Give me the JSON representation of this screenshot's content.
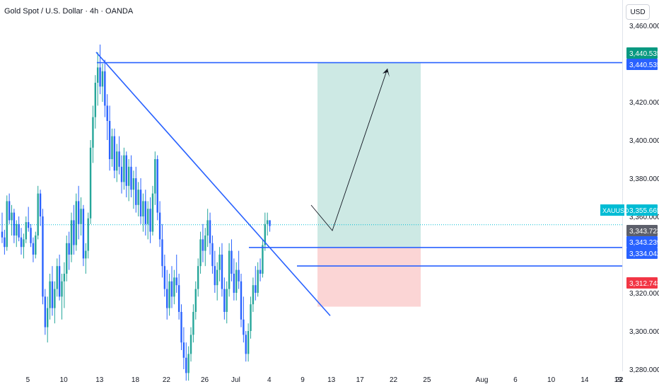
{
  "header": {
    "title": "Gold Spot / U.S. Dollar · 4h · OANDA",
    "currency_label": "USD"
  },
  "colors": {
    "up": "#26a69a",
    "down": "#2962ff",
    "line": "#2962ff",
    "profit_zone": "#cde9e4",
    "loss_zone": "#fbd5d5",
    "tp_tag": "#089981",
    "sl_tag": "#f23645",
    "price_tag": "#00bcd4",
    "blue_tag": "#2962ff",
    "gray_tag": "#5d606b"
  },
  "chart_data": {
    "type": "candlestick",
    "symbol": "XAUUSD",
    "timeframe": "4h",
    "ylim": [
      3270,
      3470
    ],
    "y_ticks": [
      "3,460.000",
      "3,440.535",
      "3,420.000",
      "3,400.000",
      "3,380.000",
      "3,360.000",
      "3,355.665",
      "3,343.723",
      "3,343.239",
      "3,334.042",
      "3,320.000",
      "3,312.743",
      "3,300.000",
      "3,280.000"
    ],
    "y_tick_values": [
      3460,
      3440.535,
      3420,
      3400,
      3380,
      3360,
      3355.665,
      3343.723,
      3343.239,
      3334.042,
      3320,
      3312.743,
      3300,
      3280
    ],
    "x_tick_labels": [
      "5",
      "10",
      "13",
      "18",
      "22",
      "26",
      "Jul",
      "4",
      "9",
      "13",
      "17",
      "22",
      "25",
      "Aug",
      "6",
      "10",
      "14",
      "19",
      "22"
    ],
    "x_tick_bars": [
      1,
      16,
      31,
      46,
      59,
      75,
      88,
      102,
      116,
      128,
      140,
      154,
      168,
      191,
      205,
      220,
      234,
      248,
      262
    ],
    "price_labels": [
      {
        "text": "3,440.535",
        "value": 3440.535,
        "kind": "tp"
      },
      {
        "text": "3,440.535",
        "value": 3440.535,
        "kind": "blue"
      },
      {
        "text": "3,355.665",
        "value": 3355.665,
        "kind": "price",
        "ticker": "XAUUSD"
      },
      {
        "text": "3,343.723",
        "value": 3343.723,
        "kind": "gray"
      },
      {
        "text": "3,343.239",
        "value": 3343.239,
        "kind": "blue"
      },
      {
        "text": "3,334.042",
        "value": 3334.042,
        "kind": "blue"
      },
      {
        "text": "3,312.743",
        "value": 3312.743,
        "kind": "sl"
      }
    ],
    "candles_ohlc": [
      [
        3352,
        3362,
        3346,
        3349
      ],
      [
        3349,
        3353,
        3340,
        3344
      ],
      [
        3344,
        3371,
        3342,
        3368
      ],
      [
        3368,
        3372,
        3356,
        3358
      ],
      [
        3358,
        3366,
        3350,
        3362
      ],
      [
        3362,
        3364,
        3346,
        3350
      ],
      [
        3350,
        3358,
        3344,
        3356
      ],
      [
        3356,
        3360,
        3347,
        3349
      ],
      [
        3349,
        3354,
        3340,
        3344
      ],
      [
        3344,
        3351,
        3338,
        3348
      ],
      [
        3348,
        3360,
        3346,
        3357
      ],
      [
        3357,
        3365,
        3352,
        3354
      ],
      [
        3354,
        3356,
        3344,
        3346
      ],
      [
        3346,
        3349,
        3336,
        3340
      ],
      [
        3340,
        3352,
        3338,
        3350
      ],
      [
        3350,
        3376,
        3348,
        3372
      ],
      [
        3372,
        3374,
        3355,
        3360
      ],
      [
        3360,
        3364,
        3314,
        3318
      ],
      [
        3318,
        3322,
        3298,
        3302
      ],
      [
        3302,
        3318,
        3294,
        3312
      ],
      [
        3312,
        3330,
        3306,
        3326
      ],
      [
        3326,
        3334,
        3308,
        3312
      ],
      [
        3312,
        3326,
        3304,
        3322
      ],
      [
        3322,
        3338,
        3318,
        3334
      ],
      [
        3334,
        3340,
        3316,
        3318
      ],
      [
        3318,
        3330,
        3306,
        3326
      ],
      [
        3326,
        3336,
        3312,
        3330
      ],
      [
        3330,
        3350,
        3326,
        3346
      ],
      [
        3346,
        3352,
        3332,
        3340
      ],
      [
        3340,
        3362,
        3336,
        3358
      ],
      [
        3358,
        3366,
        3340,
        3345
      ],
      [
        3345,
        3372,
        3342,
        3368
      ],
      [
        3368,
        3376,
        3348,
        3356
      ],
      [
        3356,
        3370,
        3350,
        3364
      ],
      [
        3364,
        3366,
        3334,
        3338
      ],
      [
        3338,
        3346,
        3330,
        3342
      ],
      [
        3342,
        3362,
        3338,
        3359
      ],
      [
        3359,
        3400,
        3356,
        3396
      ],
      [
        3396,
        3418,
        3388,
        3412
      ],
      [
        3412,
        3434,
        3406,
        3430
      ],
      [
        3430,
        3446,
        3418,
        3438
      ],
      [
        3438,
        3450,
        3424,
        3428
      ],
      [
        3428,
        3440,
        3420,
        3436
      ],
      [
        3436,
        3442,
        3412,
        3418
      ],
      [
        3418,
        3424,
        3400,
        3410
      ],
      [
        3410,
        3418,
        3384,
        3390
      ],
      [
        3390,
        3406,
        3386,
        3402
      ],
      [
        3402,
        3406,
        3380,
        3384
      ],
      [
        3384,
        3398,
        3378,
        3394
      ],
      [
        3394,
        3402,
        3382,
        3386
      ],
      [
        3386,
        3392,
        3372,
        3378
      ],
      [
        3378,
        3396,
        3374,
        3392
      ],
      [
        3392,
        3394,
        3370,
        3376
      ],
      [
        3376,
        3390,
        3368,
        3386
      ],
      [
        3386,
        3392,
        3370,
        3374
      ],
      [
        3374,
        3384,
        3364,
        3380
      ],
      [
        3380,
        3386,
        3362,
        3366
      ],
      [
        3366,
        3378,
        3360,
        3374
      ],
      [
        3374,
        3380,
        3356,
        3360
      ],
      [
        3360,
        3372,
        3352,
        3368
      ],
      [
        3368,
        3374,
        3350,
        3356
      ],
      [
        3356,
        3368,
        3348,
        3364
      ],
      [
        3364,
        3370,
        3346,
        3352
      ],
      [
        3352,
        3376,
        3350,
        3372
      ],
      [
        3372,
        3394,
        3366,
        3390
      ],
      [
        3390,
        3392,
        3358,
        3362
      ],
      [
        3362,
        3368,
        3344,
        3348
      ],
      [
        3348,
        3356,
        3328,
        3334
      ],
      [
        3334,
        3340,
        3318,
        3322
      ],
      [
        3322,
        3332,
        3306,
        3312
      ],
      [
        3312,
        3330,
        3308,
        3326
      ],
      [
        3326,
        3334,
        3312,
        3318
      ],
      [
        3318,
        3332,
        3314,
        3328
      ],
      [
        3328,
        3340,
        3320,
        3324
      ],
      [
        3324,
        3330,
        3306,
        3310
      ],
      [
        3310,
        3314,
        3290,
        3294
      ],
      [
        3294,
        3302,
        3280,
        3286
      ],
      [
        3286,
        3294,
        3274,
        3278
      ],
      [
        3278,
        3292,
        3274,
        3288
      ],
      [
        3288,
        3302,
        3284,
        3298
      ],
      [
        3298,
        3314,
        3294,
        3310
      ],
      [
        3310,
        3326,
        3306,
        3322
      ],
      [
        3322,
        3338,
        3318,
        3334
      ],
      [
        3334,
        3352,
        3330,
        3348
      ],
      [
        3348,
        3356,
        3336,
        3342
      ],
      [
        3342,
        3354,
        3334,
        3350
      ],
      [
        3350,
        3364,
        3344,
        3358
      ],
      [
        3358,
        3362,
        3340,
        3346
      ],
      [
        3346,
        3350,
        3330,
        3334
      ],
      [
        3334,
        3342,
        3320,
        3324
      ],
      [
        3324,
        3336,
        3316,
        3332
      ],
      [
        3332,
        3344,
        3326,
        3340
      ],
      [
        3340,
        3346,
        3318,
        3322
      ],
      [
        3322,
        3328,
        3306,
        3310
      ],
      [
        3310,
        3326,
        3304,
        3322
      ],
      [
        3322,
        3346,
        3318,
        3342
      ],
      [
        3342,
        3348,
        3326,
        3330
      ],
      [
        3330,
        3338,
        3316,
        3320
      ],
      [
        3320,
        3336,
        3316,
        3332
      ],
      [
        3332,
        3342,
        3322,
        3326
      ],
      [
        3326,
        3330,
        3302,
        3306
      ],
      [
        3306,
        3318,
        3294,
        3298
      ],
      [
        3298,
        3300,
        3284,
        3288
      ],
      [
        3288,
        3304,
        3284,
        3300
      ],
      [
        3300,
        3318,
        3296,
        3314
      ],
      [
        3314,
        3328,
        3310,
        3324
      ],
      [
        3324,
        3334,
        3316,
        3320
      ],
      [
        3320,
        3336,
        3318,
        3332
      ],
      [
        3332,
        3338,
        3326,
        3330
      ],
      [
        3330,
        3348,
        3328,
        3345
      ],
      [
        3345,
        3362,
        3342,
        3356
      ],
      [
        3356,
        3362,
        3350,
        3358
      ],
      [
        3358,
        3358,
        3352,
        3355
      ]
    ],
    "drawings": {
      "resistance_line": {
        "value": 3440.535
      },
      "breakout_levels": [
        3343.723,
        3334.042
      ],
      "trendline": {
        "from": [
          0,
          3446
        ],
        "to": [
          1,
          3308
        ]
      },
      "target_zone": [
        3343.723,
        3440.535
      ],
      "stop_zone": [
        3312.743,
        3343.723
      ]
    }
  }
}
